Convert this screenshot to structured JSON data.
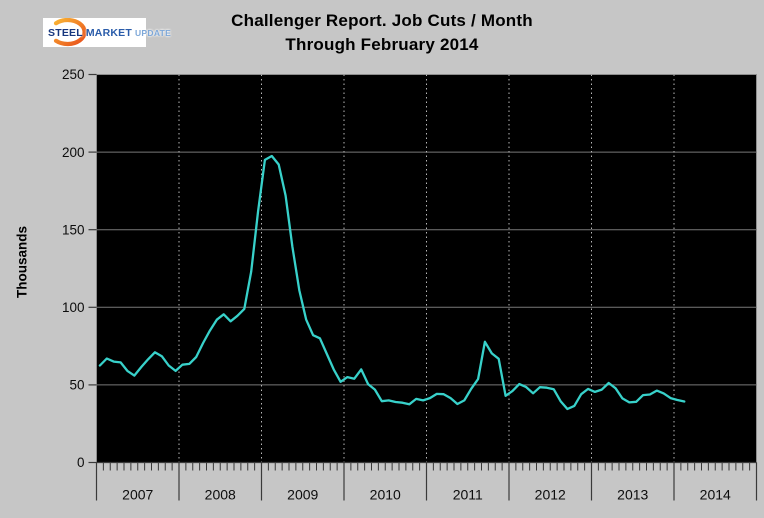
{
  "logo": {
    "steel": "STEEL",
    "market": "MARKET",
    "update": "UPDATE"
  },
  "title": {
    "line1": "Challenger Report. Job Cuts / Month",
    "line2": "Through February 2014"
  },
  "chart_data": {
    "type": "line",
    "title": "Challenger Report. Job Cuts / Month Through February 2014",
    "xlabel": "",
    "ylabel": "Thousands",
    "ylim": [
      0,
      250
    ],
    "yticks": [
      0,
      50,
      100,
      150,
      200,
      250
    ],
    "x_years": [
      "2007",
      "2008",
      "2009",
      "2010",
      "2011",
      "2012",
      "2013",
      "2014"
    ],
    "months_per_year": 12,
    "grid": {
      "horizontal": "solid",
      "vertical": "dotted-at-year-boundaries"
    },
    "legend": "none",
    "plot_background": "#000000",
    "series": [
      {
        "name": "Job cuts per month (thousands)",
        "start_month": "2007-01",
        "end_month": "2014-02",
        "color": "#38d1ca",
        "values": [
          62.5,
          67,
          65,
          64.5,
          59,
          56,
          61.5,
          66.5,
          71,
          68.5,
          62.5,
          59,
          63,
          63.5,
          68,
          77,
          85,
          92,
          95.5,
          91,
          94.5,
          99,
          123,
          162,
          195,
          197.5,
          192,
          172,
          139,
          111,
          92,
          82,
          80,
          70,
          60,
          52,
          55,
          54,
          60,
          50.5,
          47,
          39.5,
          40,
          39,
          38.5,
          37.5,
          41,
          40,
          41.5,
          44.2,
          44,
          41.5,
          37.7,
          40,
          47.5,
          53.8,
          77.8,
          70.3,
          66.8,
          43,
          46,
          50.5,
          48.6,
          44.6,
          48.5,
          48.2,
          47.2,
          39.5,
          34.5,
          36.5,
          44,
          47.4,
          45.5,
          47,
          51.2,
          47.8,
          41.3,
          38.7,
          39.1,
          43.4,
          43.8,
          46.3,
          44.5,
          41.5,
          40.3,
          39.3
        ]
      }
    ],
    "colors": {
      "page_background": "#c6c6c6",
      "plot_background": "#000000",
      "line": "#38d1ca",
      "h_gridline": "#787878",
      "v_gridline": "#b8b8b8",
      "ticks": "#3a3a3a",
      "text": "#0d0d0d",
      "logo_orange_start": "#f9b233",
      "logo_orange_end": "#e84e1b"
    }
  }
}
